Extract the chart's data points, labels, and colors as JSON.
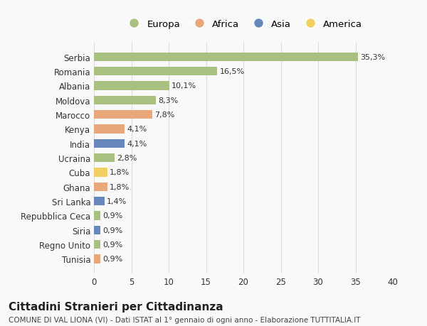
{
  "countries": [
    "Serbia",
    "Romania",
    "Albania",
    "Moldova",
    "Marocco",
    "Kenya",
    "India",
    "Ucraina",
    "Cuba",
    "Ghana",
    "Sri Lanka",
    "Repubblica Ceca",
    "Siria",
    "Regno Unito",
    "Tunisia"
  ],
  "values": [
    35.3,
    16.5,
    10.1,
    8.3,
    7.8,
    4.1,
    4.1,
    2.8,
    1.8,
    1.8,
    1.4,
    0.9,
    0.9,
    0.9,
    0.9
  ],
  "labels": [
    "35,3%",
    "16,5%",
    "10,1%",
    "8,3%",
    "7,8%",
    "4,1%",
    "4,1%",
    "2,8%",
    "1,8%",
    "1,8%",
    "1,4%",
    "0,9%",
    "0,9%",
    "0,9%",
    "0,9%"
  ],
  "continents": [
    "Europa",
    "Europa",
    "Europa",
    "Europa",
    "Africa",
    "Africa",
    "Asia",
    "Europa",
    "America",
    "Africa",
    "Asia",
    "Europa",
    "Asia",
    "Europa",
    "Africa"
  ],
  "continent_colors": {
    "Europa": "#a8c080",
    "Africa": "#e8a87c",
    "Asia": "#6688bb",
    "America": "#f0d060"
  },
  "legend_order": [
    "Europa",
    "Africa",
    "Asia",
    "America"
  ],
  "title": "Cittadini Stranieri per Cittadinanza",
  "subtitle": "COMUNE DI VAL LIONA (VI) - Dati ISTAT al 1° gennaio di ogni anno - Elaborazione TUTTITALIA.IT",
  "xlim": [
    0,
    40
  ],
  "xticks": [
    0,
    5,
    10,
    15,
    20,
    25,
    30,
    35,
    40
  ],
  "background_color": "#f9f9f9",
  "grid_color": "#dddddd",
  "bar_height": 0.6
}
